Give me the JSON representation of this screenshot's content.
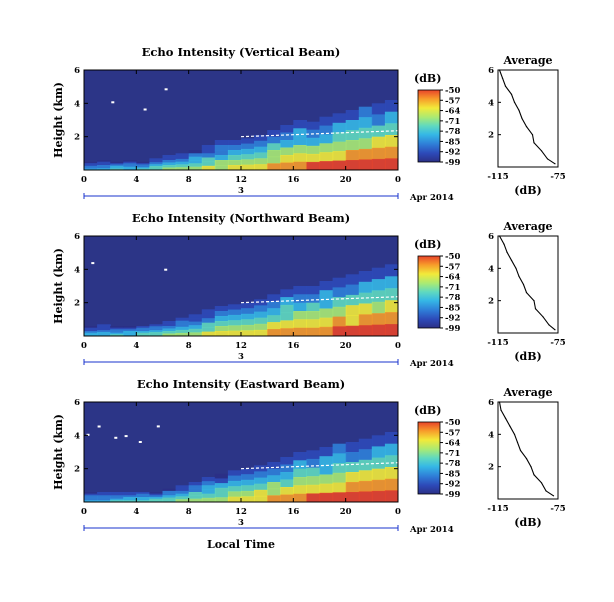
{
  "figure": {
    "date_label": "Apr 2014",
    "xlabel": "Local Time",
    "day_label": "3"
  },
  "chart_data": [
    {
      "type": "heatmap",
      "title": "Echo Intensity (Vertical Beam)",
      "ylabel": "Height (km)",
      "x_ticks": [
        "0",
        "4",
        "8",
        "12",
        "16",
        "20",
        "0"
      ],
      "xlim": [
        0,
        24
      ],
      "y_ticks": [
        "6",
        "4",
        "2"
      ],
      "ylim": [
        0,
        6
      ],
      "colorbar": {
        "unit": "(dB)",
        "ticks": [
          "-50",
          "-57",
          "-64",
          "-71",
          "-78",
          "-85",
          "-92",
          "-99"
        ],
        "range": [
          -99,
          -50
        ]
      },
      "hourly_top_km": [
        0.5,
        0.6,
        0.5,
        0.6,
        0.5,
        0.7,
        0.9,
        1.0,
        1.2,
        1.5,
        1.8,
        1.8,
        1.9,
        2.1,
        2.4,
        2.7,
        3.0,
        2.9,
        3.2,
        3.4,
        3.6,
        3.8,
        4.0,
        4.2
      ],
      "average": {
        "title": "Average",
        "xlabel": "(dB)",
        "x_ticks": [
          "-115",
          "-75"
        ],
        "y_ticks": [
          "6",
          "4",
          "2"
        ],
        "xlim": [
          -115,
          -75
        ],
        "ylim": [
          0,
          6
        ],
        "height_km": [
          6.0,
          5.5,
          5.0,
          4.5,
          4.0,
          3.5,
          3.0,
          2.5,
          2.0,
          1.5,
          1.0,
          0.5,
          0.2
        ],
        "value_db": [
          -114,
          -112,
          -110,
          -106,
          -104,
          -101,
          -99,
          -96,
          -92,
          -91,
          -86,
          -82,
          -77
        ]
      }
    },
    {
      "type": "heatmap",
      "title": "Echo Intensity (Northward Beam)",
      "ylabel": "Height (km)",
      "x_ticks": [
        "0",
        "4",
        "8",
        "12",
        "16",
        "20",
        "0"
      ],
      "xlim": [
        0,
        24
      ],
      "y_ticks": [
        "6",
        "4",
        "2"
      ],
      "ylim": [
        0,
        6
      ],
      "colorbar": {
        "unit": "(dB)",
        "ticks": [
          "-50",
          "-57",
          "-64",
          "-71",
          "-78",
          "-85",
          "-92",
          "-99"
        ],
        "range": [
          -99,
          -50
        ]
      },
      "hourly_top_km": [
        0.6,
        0.7,
        0.6,
        0.6,
        0.6,
        0.7,
        0.9,
        1.1,
        1.3,
        1.6,
        1.8,
        1.9,
        2.0,
        2.2,
        2.5,
        2.8,
        3.0,
        3.0,
        3.3,
        3.5,
        3.7,
        3.9,
        4.1,
        4.3
      ],
      "average": {
        "title": "Average",
        "xlabel": "(dB)",
        "x_ticks": [
          "-115",
          "-75"
        ],
        "y_ticks": [
          "6",
          "4",
          "2"
        ],
        "xlim": [
          -115,
          -75
        ],
        "ylim": [
          0,
          6
        ],
        "height_km": [
          6.0,
          5.5,
          5.0,
          4.5,
          4.0,
          3.5,
          3.0,
          2.5,
          2.0,
          1.5,
          1.0,
          0.5,
          0.2
        ],
        "value_db": [
          -114,
          -111,
          -109,
          -106,
          -103,
          -101,
          -98,
          -96,
          -91,
          -90,
          -85,
          -81,
          -77
        ]
      }
    },
    {
      "type": "heatmap",
      "title": "Echo Intensity (Eastward Beam)",
      "ylabel": "Height (km)",
      "x_ticks": [
        "0",
        "4",
        "8",
        "12",
        "16",
        "20",
        "0"
      ],
      "xlim": [
        0,
        24
      ],
      "y_ticks": [
        "6",
        "4",
        "2"
      ],
      "ylim": [
        0,
        6
      ],
      "colorbar": {
        "unit": "(dB)",
        "ticks": [
          "-50",
          "-57",
          "-64",
          "-71",
          "-78",
          "-85",
          "-92",
          "-99"
        ],
        "range": [
          -99,
          -50
        ]
      },
      "hourly_top_km": [
        0.6,
        0.6,
        0.6,
        0.6,
        0.6,
        0.6,
        0.8,
        1.0,
        1.2,
        1.5,
        1.7,
        1.9,
        2.0,
        2.2,
        2.4,
        2.7,
        3.0,
        3.1,
        3.3,
        3.5,
        3.6,
        3.8,
        4.0,
        4.2
      ],
      "average": {
        "title": "Average",
        "xlabel": "(dB)",
        "x_ticks": [
          "-115",
          "-75"
        ],
        "y_ticks": [
          "6",
          "4",
          "2"
        ],
        "xlim": [
          -115,
          -75
        ],
        "ylim": [
          0,
          6
        ],
        "height_km": [
          6.0,
          5.5,
          5.0,
          4.5,
          4.0,
          3.5,
          3.0,
          2.5,
          2.0,
          1.5,
          1.0,
          0.5,
          0.2
        ],
        "value_db": [
          -114,
          -113,
          -110,
          -107,
          -104,
          -102,
          -100,
          -96,
          -93,
          -91,
          -86,
          -83,
          -78
        ]
      }
    }
  ],
  "colors": {
    "background_field": "#2c3587",
    "colormap": [
      "#2b2f86",
      "#2d49b8",
      "#2f7fd8",
      "#35b7e6",
      "#5fd9c0",
      "#a9ea74",
      "#f2ea3a",
      "#f79a2a",
      "#e8432a"
    ],
    "axis": "#000000",
    "timeline": "#1a33cc"
  }
}
